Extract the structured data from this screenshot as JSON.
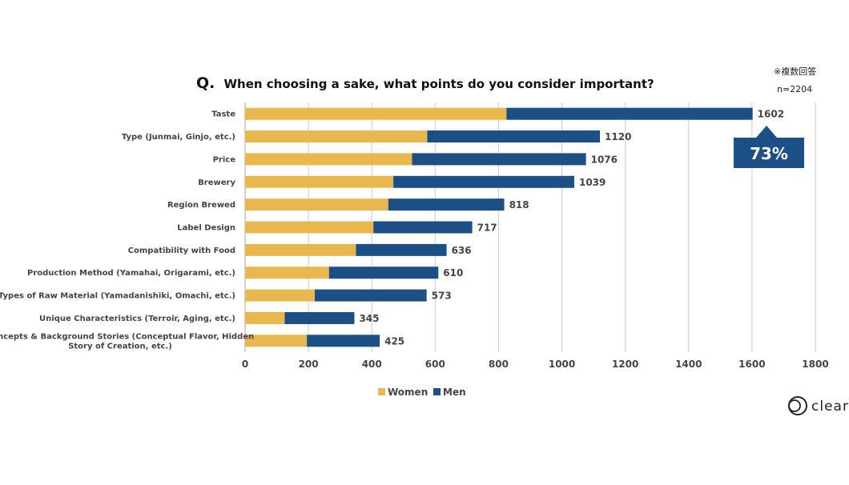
{
  "title_prefix": "Q.",
  "title": "When choosing a sake, what points do you consider important?",
  "note": "※複数回答",
  "sample_size": "n=2204",
  "callout": "73%",
  "logo": "clear",
  "colors": {
    "women": "#E8B84E",
    "men": "#1B4F86",
    "grid": "#cccccc",
    "text": "#444444"
  },
  "chart_data": {
    "type": "bar",
    "orientation": "horizontal",
    "stacked": true,
    "categories": [
      "Taste",
      "Type (Junmai, Ginjo, etc.)",
      "Price",
      "Brewery",
      "Region Brewed",
      "Label Design",
      "Compatibility with Food",
      "Production Method (Yamahai, Origarami, etc.)",
      "Types of Raw Material (Yamadanishiki, Omachi, etc.)",
      "Unique Characteristics (Terroir, Aging, etc.)",
      "Concepts & Background Stories (Conceptual Flavor, Hidden Story of Creation, etc.)"
    ],
    "category_lines": [
      [
        "Taste"
      ],
      [
        "Type (Junmai, Ginjo, etc.)"
      ],
      [
        "Price"
      ],
      [
        "Brewery"
      ],
      [
        "Region Brewed"
      ],
      [
        "Label Design"
      ],
      [
        "Compatibility with Food"
      ],
      [
        "Production Method (Yamahai, Origarami, etc.)"
      ],
      [
        "Types of Raw Material (Yamadanishiki, Omachi, etc.)"
      ],
      [
        "Unique Characteristics (Terroir, Aging, etc.)"
      ],
      [
        "Concepts & Background Stories (Conceptual Flavor, Hidden",
        "Story of Creation, etc.)"
      ]
    ],
    "series": [
      {
        "name": "Women",
        "values": [
          825,
          575,
          527,
          468,
          452,
          405,
          350,
          265,
          220,
          125,
          195
        ]
      },
      {
        "name": "Men",
        "values": [
          777,
          545,
          549,
          571,
          366,
          312,
          286,
          345,
          353,
          220,
          230
        ]
      }
    ],
    "totals": [
      1602,
      1120,
      1076,
      1039,
      818,
      717,
      636,
      610,
      573,
      345,
      425
    ],
    "xlim": [
      0,
      1800
    ],
    "xticks": [
      0,
      200,
      400,
      600,
      800,
      1000,
      1200,
      1400,
      1600,
      1800
    ],
    "grid": "vertical",
    "legend": "bottom"
  }
}
